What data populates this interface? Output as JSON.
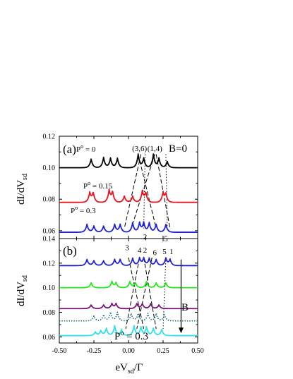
{
  "chart_data": [
    {
      "type": "line",
      "panel_label": "(a)",
      "annotation": "B=0",
      "ylabel": "dI/dV",
      "ylabel_sub": "sd",
      "ylim": [
        0.055,
        0.12
      ],
      "yticks": [
        "0.06",
        "0.08",
        "0.10",
        "0.12"
      ],
      "xlim": [
        -0.5,
        0.5
      ],
      "colors": {
        "black": "#000000",
        "red": "#e8141c",
        "blue": "#1f1fd6"
      },
      "series": [
        {
          "name": "P° = 0",
          "label_sup": "o",
          "label_rest": " = 0",
          "color": "#000000",
          "style": "solid",
          "baseline": 0.1,
          "peaks": [
            {
              "x": -0.27,
              "h": 0.0055
            },
            {
              "x": -0.18,
              "h": 0.0065
            },
            {
              "x": -0.13,
              "h": 0.006
            },
            {
              "x": -0.08,
              "h": 0.006
            },
            {
              "x": 0.07,
              "h": 0.0085
            },
            {
              "x": 0.11,
              "h": 0.006
            },
            {
              "x": 0.18,
              "h": 0.0085
            },
            {
              "x": 0.22,
              "h": 0.006
            },
            {
              "x": 0.28,
              "h": 0.004
            }
          ]
        },
        {
          "name": "P° = 0.15",
          "label_sup": "o",
          "label_rest": " = 0.15",
          "color": "#e8141c",
          "style": "solid",
          "baseline": 0.078,
          "peaks": [
            {
              "x": -0.28,
              "h": 0.006
            },
            {
              "x": -0.255,
              "h": 0.006
            },
            {
              "x": -0.14,
              "h": 0.0075
            },
            {
              "x": -0.115,
              "h": 0.0065
            },
            {
              "x": -0.03,
              "h": 0.004
            },
            {
              "x": 0.03,
              "h": 0.004
            },
            {
              "x": 0.1,
              "h": 0.007
            },
            {
              "x": 0.125,
              "h": 0.006
            },
            {
              "x": 0.25,
              "h": 0.006
            },
            {
              "x": 0.27,
              "h": 0.005
            }
          ]
        },
        {
          "name": "P° = 0.3",
          "label_sup": "o",
          "label_rest": " = 0.3",
          "color": "#1f1fd6",
          "style": "solid",
          "baseline": 0.059,
          "peaks": [
            {
              "x": -0.3,
              "h": 0.005
            },
            {
              "x": -0.25,
              "h": 0.004
            },
            {
              "x": -0.18,
              "h": 0.004
            },
            {
              "x": -0.1,
              "h": 0.005
            },
            {
              "x": -0.06,
              "h": 0.005
            },
            {
              "x": 0.03,
              "h": 0.006
            },
            {
              "x": 0.08,
              "h": 0.006
            },
            {
              "x": 0.11,
              "h": 0.006
            },
            {
              "x": 0.15,
              "h": 0.006
            },
            {
              "x": 0.2,
              "h": 0.005
            },
            {
              "x": 0.27,
              "h": 0.005
            }
          ]
        }
      ],
      "guide_lines": [
        {
          "from": [
            0.09,
            0.1085
          ],
          "to": [
            -0.03,
            0.0615
          ],
          "dash": "dashed"
        },
        {
          "from": [
            0.07,
            0.1085
          ],
          "to": [
            0.2,
            0.0615
          ],
          "dash": "dashed"
        },
        {
          "from": [
            0.19,
            0.1085
          ],
          "to": [
            0.02,
            0.0615
          ],
          "dash": "dashed"
        },
        {
          "from": [
            0.2,
            0.1085
          ],
          "to": [
            0.3,
            0.0615
          ],
          "dash": "dashed"
        },
        {
          "from": [
            0.12,
            0.1085
          ],
          "to": [
            0.11,
            0.0615
          ],
          "dash": "dotted"
        },
        {
          "from": [
            0.27,
            0.1085
          ],
          "to": [
            0.28,
            0.0615
          ],
          "dash": "dotted"
        }
      ],
      "peak_labels": [
        {
          "text": "(3,6)",
          "x": 0.08,
          "y": 0.1105
        },
        {
          "text": "(1,4)",
          "x": 0.19,
          "y": 0.1105
        },
        {
          "text": "2",
          "x": 0.12,
          "y": 0.0545
        },
        {
          "text": "5",
          "x": 0.27,
          "y": 0.0535
        }
      ]
    },
    {
      "type": "line",
      "panel_label": "(b)",
      "annotation": "B",
      "ylabel": "dI/dV",
      "ylabel_sub": "sd",
      "ylim": [
        0.055,
        0.14
      ],
      "yticks": [
        "0.06",
        "0.08",
        "0.10",
        "0.12",
        "0.14"
      ],
      "xlim": [
        -0.5,
        0.5
      ],
      "xticks": [
        "-0.50",
        "-0.25",
        "0.00",
        "0.25",
        "0.50"
      ],
      "xlabel": "eV",
      "xlabel_sub": "sd",
      "xlabel_tail": "/Γ",
      "bottom_label": "P",
      "bottom_label_sup": "o",
      "bottom_label_tail": " = 0.3",
      "colors": {
        "blue": "#1f1fd6",
        "green": "#22e81b",
        "purple": "#7a117a",
        "teal": "#0b6b6b",
        "cyan": "#2fe0ee"
      },
      "series": [
        {
          "color": "#1f1fd6",
          "style": "solid",
          "baseline": 0.118,
          "peaks": [
            {
              "x": -0.3,
              "h": 0.005
            },
            {
              "x": -0.25,
              "h": 0.004
            },
            {
              "x": -0.18,
              "h": 0.004
            },
            {
              "x": -0.1,
              "h": 0.005
            },
            {
              "x": -0.06,
              "h": 0.005
            },
            {
              "x": 0.03,
              "h": 0.006
            },
            {
              "x": 0.08,
              "h": 0.006
            },
            {
              "x": 0.11,
              "h": 0.006
            },
            {
              "x": 0.15,
              "h": 0.006
            },
            {
              "x": 0.2,
              "h": 0.005
            },
            {
              "x": 0.27,
              "h": 0.006
            },
            {
              "x": 0.3,
              "h": 0.005
            }
          ]
        },
        {
          "color": "#22e81b",
          "style": "solid",
          "baseline": 0.1,
          "peaks": [
            {
              "x": -0.27,
              "h": 0.004
            },
            {
              "x": -0.12,
              "h": 0.005
            },
            {
              "x": -0.09,
              "h": 0.004
            },
            {
              "x": 0.01,
              "h": 0.005
            },
            {
              "x": 0.05,
              "h": 0.004
            },
            {
              "x": 0.13,
              "h": 0.005
            },
            {
              "x": 0.2,
              "h": 0.004
            },
            {
              "x": 0.27,
              "h": 0.004
            }
          ]
        },
        {
          "color": "#7a117a",
          "style": "solid",
          "baseline": 0.083,
          "peaks": [
            {
              "x": -0.27,
              "h": 0.003
            },
            {
              "x": -0.18,
              "h": 0.003
            },
            {
              "x": -0.12,
              "h": 0.004
            },
            {
              "x": -0.09,
              "h": 0.004
            },
            {
              "x": 0.06,
              "h": 0.004
            },
            {
              "x": 0.1,
              "h": 0.004
            },
            {
              "x": 0.16,
              "h": 0.004
            },
            {
              "x": 0.22,
              "h": 0.003
            }
          ]
        },
        {
          "color": "#0b6b6b",
          "style": "dotted",
          "baseline": 0.073,
          "peaks": [
            {
              "x": -0.25,
              "h": 0.004
            },
            {
              "x": -0.18,
              "h": 0.005
            },
            {
              "x": -0.13,
              "h": 0.007
            },
            {
              "x": -0.08,
              "h": 0.007
            },
            {
              "x": 0.02,
              "h": 0.006
            },
            {
              "x": 0.07,
              "h": 0.006
            },
            {
              "x": 0.14,
              "h": 0.006
            },
            {
              "x": 0.2,
              "h": 0.006
            },
            {
              "x": 0.26,
              "h": 0.005
            }
          ]
        },
        {
          "color": "#2fe0ee",
          "style": "solid",
          "baseline": 0.061,
          "peaks": [
            {
              "x": -0.24,
              "h": 0.003
            },
            {
              "x": -0.2,
              "h": 0.004
            },
            {
              "x": -0.16,
              "h": 0.006
            },
            {
              "x": -0.1,
              "h": 0.008
            },
            {
              "x": -0.05,
              "h": 0.005
            },
            {
              "x": 0.04,
              "h": 0.008
            },
            {
              "x": 0.09,
              "h": 0.007
            },
            {
              "x": 0.13,
              "h": 0.007
            },
            {
              "x": 0.18,
              "h": 0.006
            },
            {
              "x": 0.24,
              "h": 0.005
            }
          ]
        }
      ],
      "guide_lines": [
        {
          "from": [
            0.0,
            0.1245
          ],
          "to": [
            0.11,
            0.0665
          ],
          "dash": "dashed"
        },
        {
          "from": [
            0.08,
            0.1245
          ],
          "to": [
            -0.02,
            0.0665
          ],
          "dash": "dashed"
        },
        {
          "from": [
            0.11,
            0.1245
          ],
          "to": [
            0.2,
            0.0665
          ],
          "dash": "dashed"
        },
        {
          "from": [
            0.17,
            0.1245
          ],
          "to": [
            0.06,
            0.0665
          ],
          "dash": "dashed"
        },
        {
          "from": [
            0.27,
            0.1245
          ],
          "to": [
            0.25,
            0.0665
          ],
          "dash": "dotted"
        }
      ],
      "peak_labels": [
        {
          "text": "3",
          "x": -0.01,
          "y": 0.1305
        },
        {
          "text": "4",
          "x": 0.08,
          "y": 0.1285
        },
        {
          "text": "2",
          "x": 0.12,
          "y": 0.1285
        },
        {
          "text": "6",
          "x": 0.19,
          "y": 0.1265
        },
        {
          "text": "5",
          "x": 0.26,
          "y": 0.1275
        },
        {
          "text": "1",
          "x": 0.31,
          "y": 0.1275
        }
      ],
      "arrow": {
        "x": 0.38,
        "y_from": 0.123,
        "y_to": 0.063
      }
    }
  ]
}
